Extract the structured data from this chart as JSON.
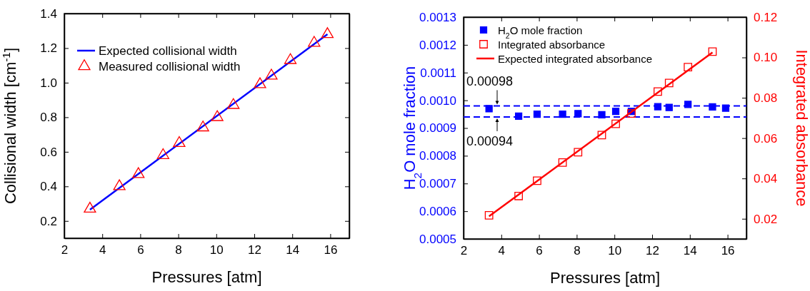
{
  "chart_data": [
    {
      "type": "scatter",
      "xlabel": "Pressures [atm]",
      "ylabel": "Collisional width [cm$^{-1}$]",
      "xlim": [
        2,
        17
      ],
      "xticks": [
        2,
        4,
        6,
        8,
        10,
        12,
        14,
        16
      ],
      "ylim": [
        0.1,
        1.4
      ],
      "yticks": [
        0.2,
        0.4,
        0.6,
        0.8,
        {
          "value": 1,
          "label": "1.0"
        },
        1.2,
        1.4
      ],
      "legend": "top left",
      "grid": false,
      "series": [
        {
          "name": "Expected collisional width",
          "type": "line",
          "color": "#0000ff",
          "line_style": "solid",
          "x": [
            3.35,
            15.85
          ],
          "values": [
            0.265,
            1.28
          ]
        },
        {
          "name": "Measured collisional width",
          "type": "scatter",
          "marker": "triangle",
          "color": "#ff0000",
          "x": [
            3.35,
            4.9,
            5.9,
            7.2,
            8.05,
            9.3,
            10.05,
            10.9,
            12.3,
            12.9,
            13.9,
            15.15,
            15.85
          ],
          "values": [
            0.27,
            0.4,
            0.47,
            0.58,
            0.65,
            0.74,
            0.8,
            0.87,
            0.99,
            1.04,
            1.13,
            1.23,
            1.28
          ]
        }
      ]
    },
    {
      "type": "scatter",
      "xlabel": "Pressures [atm]",
      "ylabel": "H$_{2}$O mole fraction",
      "y2label": "Integrated absorbance",
      "xlim": [
        2,
        17
      ],
      "xticks": [
        2,
        4,
        6,
        8,
        10,
        12,
        14,
        16
      ],
      "ylim": [
        0.0005,
        0.0013
      ],
      "yticks": [
        0.0005,
        0.0006,
        0.0007,
        0.0008,
        0.0009,
        {
          "value": 0.001,
          "label": "0.0010"
        },
        0.0011,
        0.0012,
        0.0013
      ],
      "y2lim": [
        0.01,
        0.12
      ],
      "y2ticks": [
        0.02,
        0.04,
        0.06,
        0.08,
        {
          "value": 0.1,
          "label": "0.10"
        },
        0.12
      ],
      "legend": "top left",
      "grid": false,
      "ref_lines": [
        {
          "axis": "y",
          "value": 0.00098,
          "label": "0.00098",
          "color": "#0000ff",
          "line_style": "dashed"
        },
        {
          "axis": "y",
          "value": 0.00094,
          "label": "0.00094",
          "color": "#0000ff",
          "line_style": "dashed"
        }
      ],
      "series": [
        {
          "name": "H$_{2}$O mole fraction",
          "type": "scatter",
          "marker": "square",
          "color": "#0000ff",
          "x": [
            3.35,
            4.92,
            5.9,
            7.25,
            8.07,
            9.33,
            10.07,
            10.9,
            12.3,
            12.9,
            13.9,
            15.2,
            15.9
          ],
          "values": [
            0.00097,
            0.000943,
            0.00095,
            0.00095,
            0.000952,
            0.000948,
            0.00096,
            0.00096,
            0.000977,
            0.000974,
            0.000985,
            0.000976,
            0.000972
          ]
        },
        {
          "name": "Integrated absorbance",
          "type": "scatter",
          "marker": "square",
          "axis": "y2",
          "color": "#ff0000",
          "x": [
            3.35,
            4.92,
            5.9,
            7.25,
            8.07,
            9.33,
            10.07,
            10.9,
            12.3,
            12.9,
            13.9,
            15.2
          ],
          "values": [
            0.0217,
            0.0313,
            0.0389,
            0.0479,
            0.053,
            0.0615,
            0.0671,
            0.0722,
            0.0831,
            0.0873,
            0.0952,
            0.1029
          ]
        },
        {
          "name": "Expected integrated absorbance",
          "type": "line",
          "axis": "y2",
          "color": "#ff0000",
          "line_style": "solid",
          "x": [
            3.35,
            15.2
          ],
          "values": [
            0.0212,
            0.1025
          ]
        }
      ]
    }
  ]
}
